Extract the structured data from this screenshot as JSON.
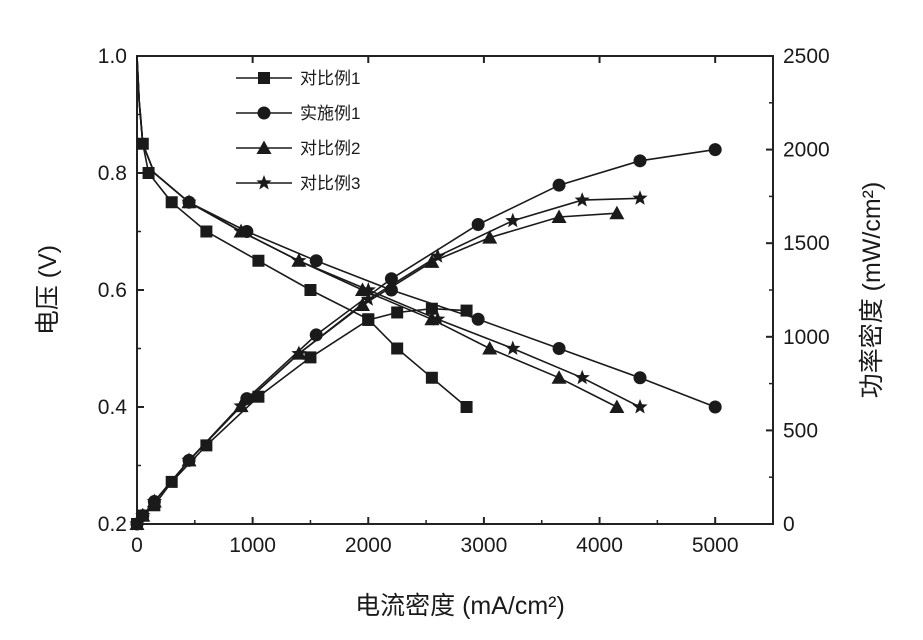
{
  "chart_data": {
    "type": "line",
    "title": "",
    "xlabel": "电流密度 (mA/cm²)",
    "ylabel": "电压 (V)",
    "y2label": "功率密度 (mW/cm²)",
    "xlim": [
      0,
      5500
    ],
    "ylim": [
      0.2,
      1.0
    ],
    "y2lim": [
      0,
      2500
    ],
    "xticks": [
      0,
      1000,
      2000,
      3000,
      4000,
      5000
    ],
    "yticks": [
      0.2,
      0.4,
      0.6,
      0.8,
      1.0
    ],
    "y2ticks": [
      0,
      500,
      1000,
      1500,
      2000,
      2500
    ],
    "legend_position": "top-left",
    "series": [
      {
        "name": "对比例1",
        "marker": "square",
        "voltage": {
          "x": [
            0,
            10,
            20,
            30,
            50,
            100,
            300,
            600,
            1050,
            1500,
            2000,
            2250,
            2550,
            2850
          ],
          "y": [
            1.0,
            0.95,
            0.92,
            0.9,
            0.85,
            0.8,
            0.75,
            0.7,
            0.65,
            0.6,
            0.55,
            0.5,
            0.45,
            0.4
          ]
        },
        "power": {
          "x": [
            0,
            50,
            150,
            300,
            600,
            1050,
            1500,
            2000,
            2250,
            2550,
            2850
          ],
          "y": [
            0,
            45,
            100,
            225,
            420,
            680,
            890,
            1090,
            1130,
            1150,
            1140
          ]
        }
      },
      {
        "name": "实施例1",
        "marker": "circle",
        "voltage": {
          "x": [
            0,
            20,
            50,
            150,
            450,
            950,
            1550,
            2200,
            2950,
            3650,
            4350,
            5000
          ],
          "y": [
            1.0,
            0.92,
            0.85,
            0.8,
            0.75,
            0.7,
            0.65,
            0.6,
            0.55,
            0.5,
            0.45,
            0.4
          ]
        },
        "power": {
          "x": [
            0,
            50,
            150,
            450,
            950,
            1550,
            2200,
            2950,
            3650,
            4350,
            5000
          ],
          "y": [
            0,
            45,
            120,
            340,
            670,
            1010,
            1310,
            1600,
            1810,
            1940,
            2000
          ]
        }
      },
      {
        "name": "对比例2",
        "marker": "triangle",
        "voltage": {
          "x": [
            0,
            20,
            50,
            150,
            450,
            900,
            1400,
            1950,
            2550,
            3050,
            3650,
            4150
          ],
          "y": [
            1.0,
            0.92,
            0.85,
            0.8,
            0.75,
            0.7,
            0.65,
            0.6,
            0.55,
            0.5,
            0.45,
            0.4
          ]
        },
        "power": {
          "x": [
            0,
            50,
            150,
            450,
            900,
            1400,
            1950,
            2550,
            3050,
            3650,
            4150
          ],
          "y": [
            0,
            45,
            120,
            340,
            630,
            910,
            1170,
            1400,
            1530,
            1640,
            1660
          ]
        }
      },
      {
        "name": "对比例3",
        "marker": "star",
        "voltage": {
          "x": [
            0,
            20,
            50,
            150,
            450,
            900,
            1400,
            2000,
            2600,
            3250,
            3850,
            4350
          ],
          "y": [
            1.0,
            0.92,
            0.85,
            0.8,
            0.75,
            0.7,
            0.65,
            0.6,
            0.55,
            0.5,
            0.45,
            0.4
          ]
        },
        "power": {
          "x": [
            0,
            50,
            150,
            450,
            900,
            1400,
            2000,
            2600,
            3250,
            3850,
            4350
          ],
          "y": [
            0,
            45,
            120,
            340,
            630,
            910,
            1200,
            1430,
            1620,
            1730,
            1740
          ]
        }
      }
    ]
  }
}
